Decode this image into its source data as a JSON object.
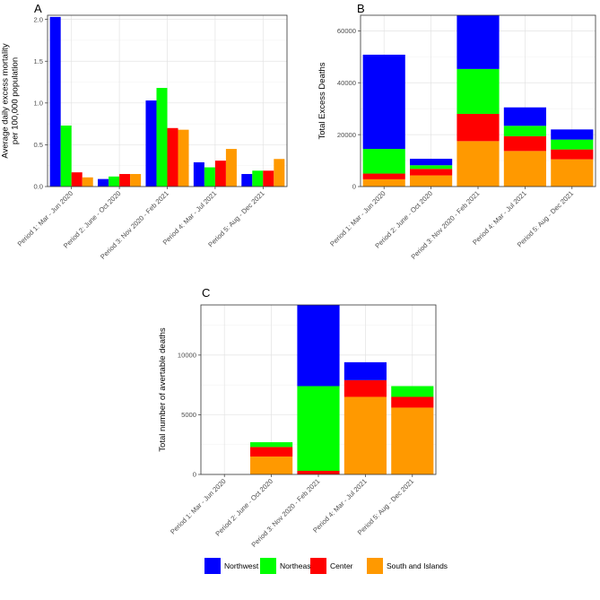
{
  "colors": {
    "Northwest": "#0000ff",
    "Northeast": "#00ff00",
    "Center": "#ff0000",
    "South and Islands": "#ff9900"
  },
  "legend": {
    "entries": [
      "Northwest",
      "Northeast",
      "Center",
      "South and Islands"
    ]
  },
  "chart_data": [
    {
      "panel": "A",
      "type": "bar",
      "mode": "grouped",
      "ylabel": "Average daily excess mortality per 100,000 population",
      "ylabel_lines": [
        "Average daily excess mortality",
        "per 100,000 population"
      ],
      "xlabel": "",
      "ylim": [
        0,
        2.05
      ],
      "yticks": [
        0.0,
        0.5,
        1.0,
        1.5,
        2.0
      ],
      "ytick_labels": [
        "0.0",
        "0.5",
        "1.0",
        "1.5",
        "2.0"
      ],
      "grid": true,
      "categories": [
        "Period 1: Mar - Jun 2020",
        "Period 2: June - Oct 2020",
        "Period 3: Nov 2020 - Feb 2021",
        "Period 4: Mar - Jul 2021",
        "Period 5: Aug - Dec 2021"
      ],
      "series": [
        {
          "name": "Northwest",
          "values": [
            2.03,
            0.09,
            1.03,
            0.29,
            0.15
          ]
        },
        {
          "name": "Northeast",
          "values": [
            0.73,
            0.12,
            1.18,
            0.23,
            0.19
          ]
        },
        {
          "name": "Center",
          "values": [
            0.17,
            0.15,
            0.7,
            0.31,
            0.19
          ]
        },
        {
          "name": "South and Islands",
          "values": [
            0.11,
            0.15,
            0.68,
            0.45,
            0.33
          ]
        }
      ]
    },
    {
      "panel": "B",
      "type": "bar",
      "mode": "stacked",
      "ylabel": "Total Excess Deaths",
      "ylabel_lines": [
        "Total Excess Deaths"
      ],
      "xlabel": "",
      "ylim": [
        0,
        66000
      ],
      "yticks": [
        0,
        20000,
        40000,
        60000
      ],
      "ytick_labels": [
        "0",
        "20000",
        "40000",
        "60000"
      ],
      "grid": true,
      "categories": [
        "Period 1: Mar - Jun 2020",
        "Period 2: June - Oct 2020",
        "Period 3: Nov 2020 - Feb 2021",
        "Period 4: Mar - Jul 2021",
        "Period 5: Aug - Dec 2021"
      ],
      "series": [
        {
          "name": "South and Islands",
          "values": [
            2800,
            4300,
            17500,
            13700,
            10500
          ]
        },
        {
          "name": "Center",
          "values": [
            2200,
            2500,
            10500,
            5700,
            3800
          ]
        },
        {
          "name": "Northeast",
          "values": [
            9500,
            1400,
            17300,
            4000,
            3800
          ]
        },
        {
          "name": "Northwest",
          "values": [
            36300,
            2500,
            20700,
            7100,
            3900
          ]
        }
      ]
    },
    {
      "panel": "C",
      "type": "bar",
      "mode": "stacked",
      "ylabel": "Total number of avertable deaths",
      "ylabel_lines": [
        "Total number of avertable deaths"
      ],
      "xlabel": "",
      "ylim": [
        0,
        14200
      ],
      "yticks": [
        0,
        5000,
        10000
      ],
      "ytick_labels": [
        "0",
        "5000",
        "10000"
      ],
      "grid": true,
      "categories": [
        "Period 1: Mar - Jun 2020",
        "Period 2: June - Oct 2020",
        "Period 3: Nov 2020 - Feb 2021",
        "Period 4: Mar - Jul 2021",
        "Period 5: Aug - Dec 2021"
      ],
      "series": [
        {
          "name": "South and Islands",
          "values": [
            0,
            1500,
            0,
            6500,
            5600
          ]
        },
        {
          "name": "Center",
          "values": [
            0,
            800,
            300,
            1400,
            900
          ]
        },
        {
          "name": "Northeast",
          "values": [
            0,
            400,
            7100,
            0,
            900
          ]
        },
        {
          "name": "Northwest",
          "values": [
            0,
            0,
            6800,
            1500,
            0
          ]
        }
      ]
    }
  ]
}
